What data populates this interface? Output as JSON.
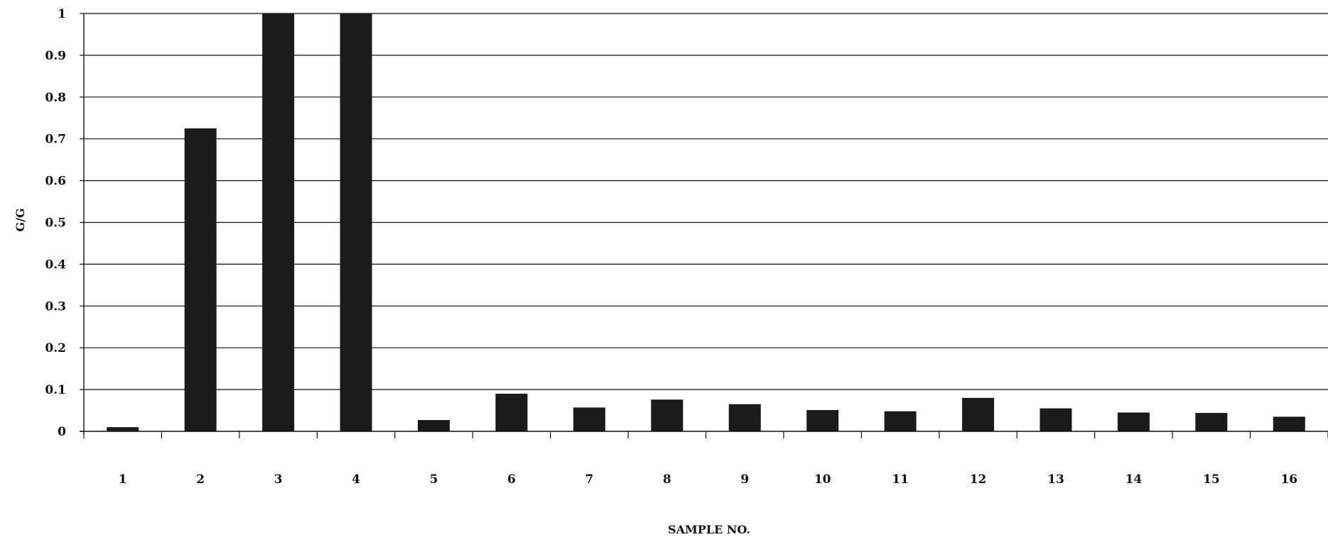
{
  "chart_data": {
    "type": "bar",
    "title": "",
    "xlabel": "SAMPLE NO.",
    "ylabel": "G/G",
    "categories": [
      "1",
      "2",
      "3",
      "4",
      "5",
      "6",
      "7",
      "8",
      "9",
      "10",
      "11",
      "12",
      "13",
      "14",
      "15",
      "16"
    ],
    "values": [
      0.01,
      0.725,
      1.0,
      1.0,
      0.027,
      0.09,
      0.057,
      0.076,
      0.065,
      0.051,
      0.048,
      0.08,
      0.055,
      0.045,
      0.044,
      0.035
    ],
    "ylim": [
      0,
      1
    ],
    "yticks": [
      "0",
      "0.1",
      "0.2",
      "0.3",
      "0.4",
      "0.5",
      "0.6",
      "0.7",
      "0.8",
      "0.9",
      "1"
    ],
    "grid": true,
    "legend": "none",
    "colors": {
      "bar": "#1a1a1a",
      "grid": "#111111",
      "background": "#ffffff"
    }
  }
}
